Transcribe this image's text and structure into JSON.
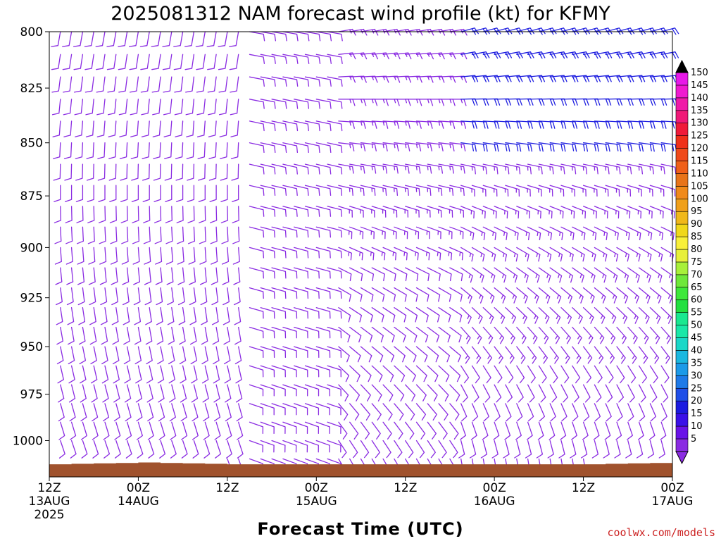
{
  "chart_data": {
    "type": "wind-barb-profile",
    "title": "2025081312 NAM forecast wind profile (kt) for KFMY",
    "xlabel": "Forecast Time (UTC)",
    "ylabel": "",
    "units": "kt",
    "y_axis": {
      "scale": "pressure",
      "range": [
        800,
        1020
      ],
      "ticks": [
        "800",
        "825",
        "850",
        "875",
        "900",
        "925",
        "950",
        "975",
        "1000"
      ]
    },
    "x_axis": {
      "range_hours": [
        0,
        84
      ],
      "ticks": [
        {
          "hour": 0,
          "line1": "12Z",
          "line2": "13AUG",
          "line3": "2025"
        },
        {
          "hour": 12,
          "line1": "00Z",
          "line2": "14AUG",
          "line3": ""
        },
        {
          "hour": 24,
          "line1": "12Z",
          "line2": "",
          "line3": ""
        },
        {
          "hour": 36,
          "line1": "00Z",
          "line2": "15AUG",
          "line3": ""
        },
        {
          "hour": 48,
          "line1": "12Z",
          "line2": "",
          "line3": ""
        },
        {
          "hour": 60,
          "line1": "00Z",
          "line2": "16AUG",
          "line3": ""
        },
        {
          "hour": 72,
          "line1": "12Z",
          "line2": "",
          "line3": ""
        },
        {
          "hour": 84,
          "line1": "00Z",
          "line2": "17AUG",
          "line3": ""
        }
      ]
    },
    "colorbar": {
      "labels": [
        "5",
        "10",
        "15",
        "20",
        "25",
        "30",
        "35",
        "40",
        "45",
        "50",
        "55",
        "60",
        "65",
        "70",
        "75",
        "80",
        "85",
        "90",
        "95",
        "100",
        "105",
        "110",
        "115",
        "120",
        "125",
        "130",
        "135",
        "140",
        "145",
        "150"
      ],
      "colors": [
        "#8a2be2",
        "#6a12e8",
        "#3a10e8",
        "#1b1be0",
        "#1f4fe8",
        "#1e7ae8",
        "#1b9ae8",
        "#1ab8e0",
        "#1ad8c8",
        "#1ae8a8",
        "#1ae890",
        "#22e040",
        "#3ee83a",
        "#6fe83a",
        "#a8f03a",
        "#e8f03a",
        "#f8f03a",
        "#f0d81a",
        "#f0b81a",
        "#f0a01a",
        "#f08a1a",
        "#e8741a",
        "#f0601a",
        "#f04a1a",
        "#f0301a",
        "#f01a3a",
        "#f01a78",
        "#f01aa8",
        "#f01ad0",
        "#e81ae8"
      ]
    },
    "barb_color": "#8a2be2",
    "strong_barb_color": "#1f1fe0",
    "terrain_color": "#a0522d",
    "wind_grid": {
      "hours_step": 1.5,
      "levels_step_hpa": 10,
      "levels_start_hpa": 800,
      "levels_end_hpa": 1010,
      "surface_hpa_by_hour": [
        [
          0,
          1013
        ],
        [
          12,
          1012
        ],
        [
          24,
          1013
        ],
        [
          48,
          1013
        ],
        [
          72,
          1013
        ],
        [
          84,
          1012
        ]
      ],
      "regimes": [
        {
          "hours": [
            0,
            26
          ],
          "low": {
            "dir": 160,
            "spd": 10
          },
          "high": {
            "dir": 190,
            "spd": 10
          }
        },
        {
          "hours": [
            26,
            38
          ],
          "low": {
            "dir": 110,
            "spd": 10
          },
          "high": {
            "dir": 100,
            "spd": 10
          }
        },
        {
          "hours": [
            38,
            55
          ],
          "low": {
            "dir": 150,
            "spd": 10
          },
          "high": {
            "dir": 80,
            "spd": 15
          }
        },
        {
          "hours": [
            55,
            84
          ],
          "low": {
            "dir": 170,
            "spd": 10
          },
          "high": {
            "dir": 75,
            "spd": 20
          }
        }
      ]
    }
  },
  "credit": "coolwx.com/models",
  "credit_color": "#cc2222"
}
